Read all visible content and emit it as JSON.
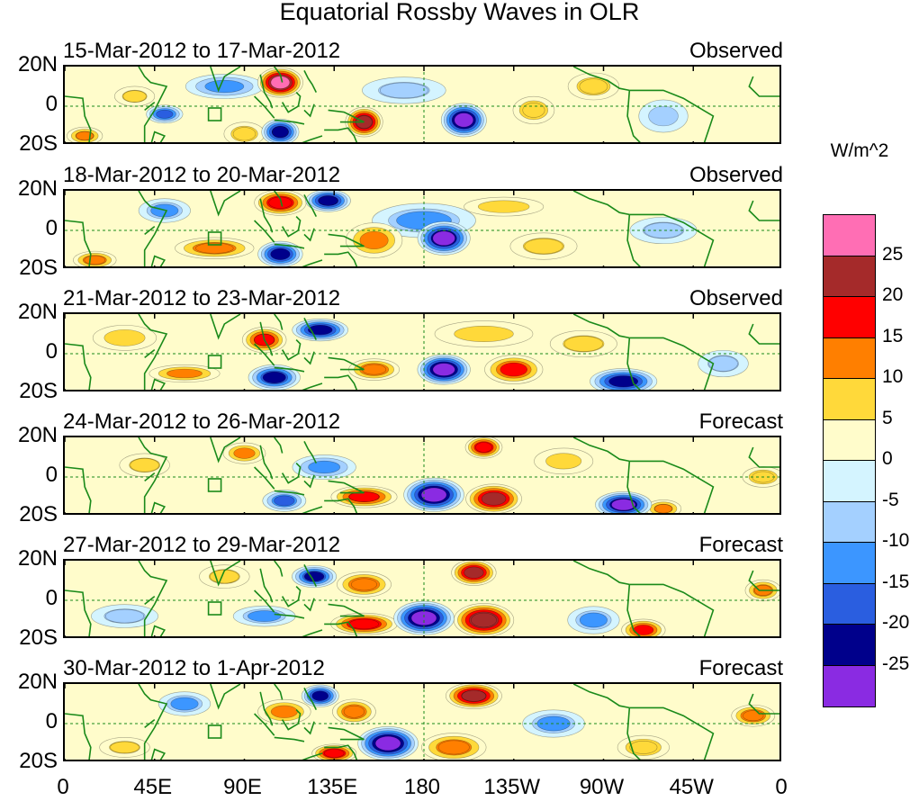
{
  "chart_data": {
    "type": "heatmap",
    "title": "Equatorial Rossby Waves in OLR",
    "units": "W/m^2",
    "x_tick_labels": [
      "0",
      "45E",
      "90E",
      "135E",
      "180",
      "135W",
      "90W",
      "45W",
      "0"
    ],
    "x_range_deg": [
      0,
      360
    ],
    "y_tick_labels": [
      "20N",
      "0",
      "20S"
    ],
    "y_range_deg": [
      -20,
      20
    ],
    "colorbar": {
      "levels": [
        "25",
        "20",
        "15",
        "10",
        "5",
        "0",
        "-5",
        "-10",
        "-15",
        "-20",
        "-25"
      ],
      "colors": [
        "#ff6eb4",
        "#a52a2a",
        "#ff0000",
        "#ff7f00",
        "#ffd93a",
        "#fffccb",
        "#d4f4ff",
        "#a4d0ff",
        "#3c96ff",
        "#2a5ee0",
        "#00008b",
        "#8a2be2"
      ]
    },
    "panels": [
      {
        "date": "15-Mar-2012 to 17-Mar-2012",
        "status": "Observed",
        "anomalies": [
          {
            "lon": 108,
            "lat": 12,
            "w": 12,
            "h": 8,
            "v": 27
          },
          {
            "lon": 150,
            "lat": -8,
            "w": 10,
            "h": 8,
            "v": 24
          },
          {
            "lon": 200,
            "lat": -7,
            "w": 12,
            "h": 9,
            "v": -27
          },
          {
            "lon": 108,
            "lat": -13,
            "w": 10,
            "h": 7,
            "v": -23
          },
          {
            "lon": 50,
            "lat": -4,
            "w": 10,
            "h": 5,
            "v": -17
          },
          {
            "lon": 35,
            "lat": 5,
            "w": 12,
            "h": 6,
            "v": 8
          },
          {
            "lon": 80,
            "lat": 10,
            "w": 22,
            "h": 7,
            "v": -12
          },
          {
            "lon": 10,
            "lat": -15,
            "w": 10,
            "h": 5,
            "v": 13
          },
          {
            "lon": 235,
            "lat": -2,
            "w": 12,
            "h": 8,
            "v": 10
          },
          {
            "lon": 265,
            "lat": 10,
            "w": 15,
            "h": 8,
            "v": 9
          },
          {
            "lon": 170,
            "lat": 8,
            "w": 25,
            "h": 8,
            "v": -8
          },
          {
            "lon": 300,
            "lat": -5,
            "w": 15,
            "h": 10,
            "v": -7
          },
          {
            "lon": 90,
            "lat": -14,
            "w": 12,
            "h": 7,
            "v": 9
          }
        ]
      },
      {
        "date": "18-Mar-2012 to 20-Mar-2012",
        "status": "Observed",
        "anomalies": [
          {
            "lon": 108,
            "lat": 14,
            "w": 14,
            "h": 7,
            "v": 20
          },
          {
            "lon": 132,
            "lat": 15,
            "w": 12,
            "h": 6,
            "v": -23
          },
          {
            "lon": 155,
            "lat": -5,
            "w": 16,
            "h": 10,
            "v": 12
          },
          {
            "lon": 190,
            "lat": -4,
            "w": 14,
            "h": 9,
            "v": -25
          },
          {
            "lon": 108,
            "lat": -12,
            "w": 12,
            "h": 7,
            "v": -22
          },
          {
            "lon": 180,
            "lat": 5,
            "w": 30,
            "h": 10,
            "v": -10
          },
          {
            "lon": 75,
            "lat": -9,
            "w": 22,
            "h": 6,
            "v": 14
          },
          {
            "lon": 50,
            "lat": 10,
            "w": 15,
            "h": 7,
            "v": -10
          },
          {
            "lon": 15,
            "lat": -15,
            "w": 12,
            "h": 5,
            "v": 14
          },
          {
            "lon": 240,
            "lat": -8,
            "w": 20,
            "h": 8,
            "v": 8
          },
          {
            "lon": 220,
            "lat": 12,
            "w": 25,
            "h": 6,
            "v": 6
          },
          {
            "lon": 300,
            "lat": 0,
            "w": 20,
            "h": 8,
            "v": -8
          }
        ]
      },
      {
        "date": "21-Mar-2012 to 23-Mar-2012",
        "status": "Observed",
        "anomalies": [
          {
            "lon": 100,
            "lat": 7,
            "w": 12,
            "h": 7,
            "v": 18
          },
          {
            "lon": 128,
            "lat": 12,
            "w": 15,
            "h": 6,
            "v": -22
          },
          {
            "lon": 155,
            "lat": -8,
            "w": 14,
            "h": 6,
            "v": 15
          },
          {
            "lon": 190,
            "lat": -8,
            "w": 14,
            "h": 8,
            "v": -27
          },
          {
            "lon": 225,
            "lat": -8,
            "w": 16,
            "h": 8,
            "v": 16
          },
          {
            "lon": 105,
            "lat": -12,
            "w": 14,
            "h": 7,
            "v": -20
          },
          {
            "lon": 280,
            "lat": -14,
            "w": 18,
            "h": 7,
            "v": -22
          },
          {
            "lon": 210,
            "lat": 10,
            "w": 30,
            "h": 8,
            "v": 7
          },
          {
            "lon": 60,
            "lat": -10,
            "w": 20,
            "h": 5,
            "v": 12
          },
          {
            "lon": 30,
            "lat": 8,
            "w": 20,
            "h": 8,
            "v": 6
          },
          {
            "lon": 260,
            "lat": 5,
            "w": 20,
            "h": 8,
            "v": 8
          },
          {
            "lon": 330,
            "lat": -5,
            "w": 15,
            "h": 8,
            "v": -8
          }
        ]
      },
      {
        "date": "24-Mar-2012 to 26-Mar-2012",
        "status": "Forecast",
        "anomalies": [
          {
            "lon": 210,
            "lat": 15,
            "w": 10,
            "h": 6,
            "v": 20
          },
          {
            "lon": 150,
            "lat": -10,
            "w": 18,
            "h": 6,
            "v": 18
          },
          {
            "lon": 185,
            "lat": -9,
            "w": 16,
            "h": 9,
            "v": -27
          },
          {
            "lon": 215,
            "lat": -11,
            "w": 15,
            "h": 8,
            "v": 22
          },
          {
            "lon": 130,
            "lat": 5,
            "w": 18,
            "h": 7,
            "v": -12
          },
          {
            "lon": 110,
            "lat": -12,
            "w": 12,
            "h": 6,
            "v": -15
          },
          {
            "lon": 280,
            "lat": -14,
            "w": 15,
            "h": 7,
            "v": -25
          },
          {
            "lon": 300,
            "lat": -16,
            "w": 10,
            "h": 5,
            "v": 13
          },
          {
            "lon": 90,
            "lat": 12,
            "w": 12,
            "h": 6,
            "v": 12
          },
          {
            "lon": 40,
            "lat": 6,
            "w": 15,
            "h": 7,
            "v": 8
          },
          {
            "lon": 350,
            "lat": 0,
            "w": 12,
            "h": 6,
            "v": 10
          },
          {
            "lon": 250,
            "lat": 8,
            "w": 18,
            "h": 8,
            "v": 7
          }
        ]
      },
      {
        "date": "27-Mar-2012 to 29-Mar-2012",
        "status": "Forecast",
        "anomalies": [
          {
            "lon": 205,
            "lat": 14,
            "w": 12,
            "h": 7,
            "v": 22
          },
          {
            "lon": 150,
            "lat": -12,
            "w": 18,
            "h": 6,
            "v": 20
          },
          {
            "lon": 180,
            "lat": -9,
            "w": 16,
            "h": 9,
            "v": -27
          },
          {
            "lon": 210,
            "lat": -10,
            "w": 16,
            "h": 9,
            "v": 25
          },
          {
            "lon": 150,
            "lat": 8,
            "w": 15,
            "h": 7,
            "v": 15
          },
          {
            "lon": 125,
            "lat": 12,
            "w": 12,
            "h": 6,
            "v": -20
          },
          {
            "lon": 100,
            "lat": -8,
            "w": 18,
            "h": 6,
            "v": -10
          },
          {
            "lon": 290,
            "lat": -15,
            "w": 12,
            "h": 6,
            "v": 17
          },
          {
            "lon": 265,
            "lat": -10,
            "w": 15,
            "h": 8,
            "v": -10
          },
          {
            "lon": 80,
            "lat": 12,
            "w": 15,
            "h": 7,
            "v": 8
          },
          {
            "lon": 350,
            "lat": 5,
            "w": 10,
            "h": 6,
            "v": 14
          },
          {
            "lon": 30,
            "lat": -8,
            "w": 20,
            "h": 7,
            "v": -8
          }
        ]
      },
      {
        "date": "30-Mar-2012 to 1-Apr-2012",
        "status": "Forecast",
        "anomalies": [
          {
            "lon": 205,
            "lat": 14,
            "w": 15,
            "h": 7,
            "v": 23
          },
          {
            "lon": 128,
            "lat": 14,
            "w": 10,
            "h": 6,
            "v": -22
          },
          {
            "lon": 145,
            "lat": 6,
            "w": 12,
            "h": 7,
            "v": 15
          },
          {
            "lon": 162,
            "lat": -10,
            "w": 16,
            "h": 9,
            "v": -27
          },
          {
            "lon": 195,
            "lat": -12,
            "w": 18,
            "h": 8,
            "v": 14
          },
          {
            "lon": 135,
            "lat": -15,
            "w": 12,
            "h": 5,
            "v": 20
          },
          {
            "lon": 110,
            "lat": 6,
            "w": 15,
            "h": 7,
            "v": 12
          },
          {
            "lon": 245,
            "lat": 0,
            "w": 18,
            "h": 8,
            "v": -10
          },
          {
            "lon": 290,
            "lat": -12,
            "w": 15,
            "h": 7,
            "v": 10
          },
          {
            "lon": 345,
            "lat": 4,
            "w": 12,
            "h": 6,
            "v": 15
          },
          {
            "lon": 60,
            "lat": 10,
            "w": 15,
            "h": 7,
            "v": -10
          },
          {
            "lon": 30,
            "lat": -12,
            "w": 15,
            "h": 6,
            "v": 8
          }
        ]
      }
    ]
  }
}
